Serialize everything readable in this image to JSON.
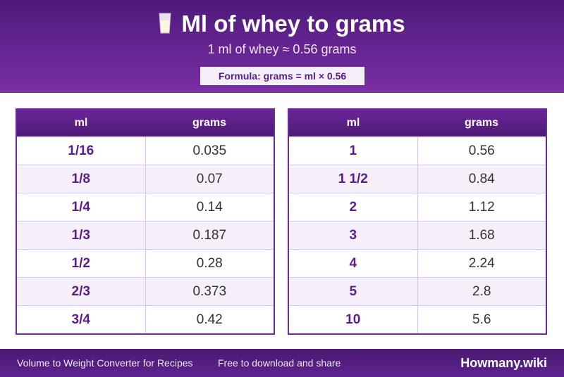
{
  "header": {
    "title": "Ml of whey to grams",
    "title_icon": "milk-glass-icon",
    "subtitle": "1 ml of whey ≈ 0.56 grams",
    "formula": "Formula: grams = ml × 0.56"
  },
  "tables": {
    "left": {
      "headers": [
        "ml",
        "grams"
      ],
      "rows": [
        [
          "1/16",
          "0.035"
        ],
        [
          "1/8",
          "0.07"
        ],
        [
          "1/4",
          "0.14"
        ],
        [
          "1/3",
          "0.187"
        ],
        [
          "1/2",
          "0.28"
        ],
        [
          "2/3",
          "0.373"
        ],
        [
          "3/4",
          "0.42"
        ]
      ]
    },
    "right": {
      "headers": [
        "ml",
        "grams"
      ],
      "rows": [
        [
          "1",
          "0.56"
        ],
        [
          "1 1/2",
          "0.84"
        ],
        [
          "2",
          "1.12"
        ],
        [
          "3",
          "1.68"
        ],
        [
          "4",
          "2.24"
        ],
        [
          "5",
          "2.8"
        ],
        [
          "10",
          "5.6"
        ]
      ]
    }
  },
  "footer": {
    "left": "Volume to Weight Converter for Recipes",
    "middle": "Free to download and share",
    "brand": "Howmany.wiki"
  },
  "colors": {
    "brand_purple": "#5a1f86",
    "header_gradient_top": "#4e1a7a",
    "header_gradient_bottom": "#7a2fa6",
    "row_alt": "#f4eff8"
  }
}
